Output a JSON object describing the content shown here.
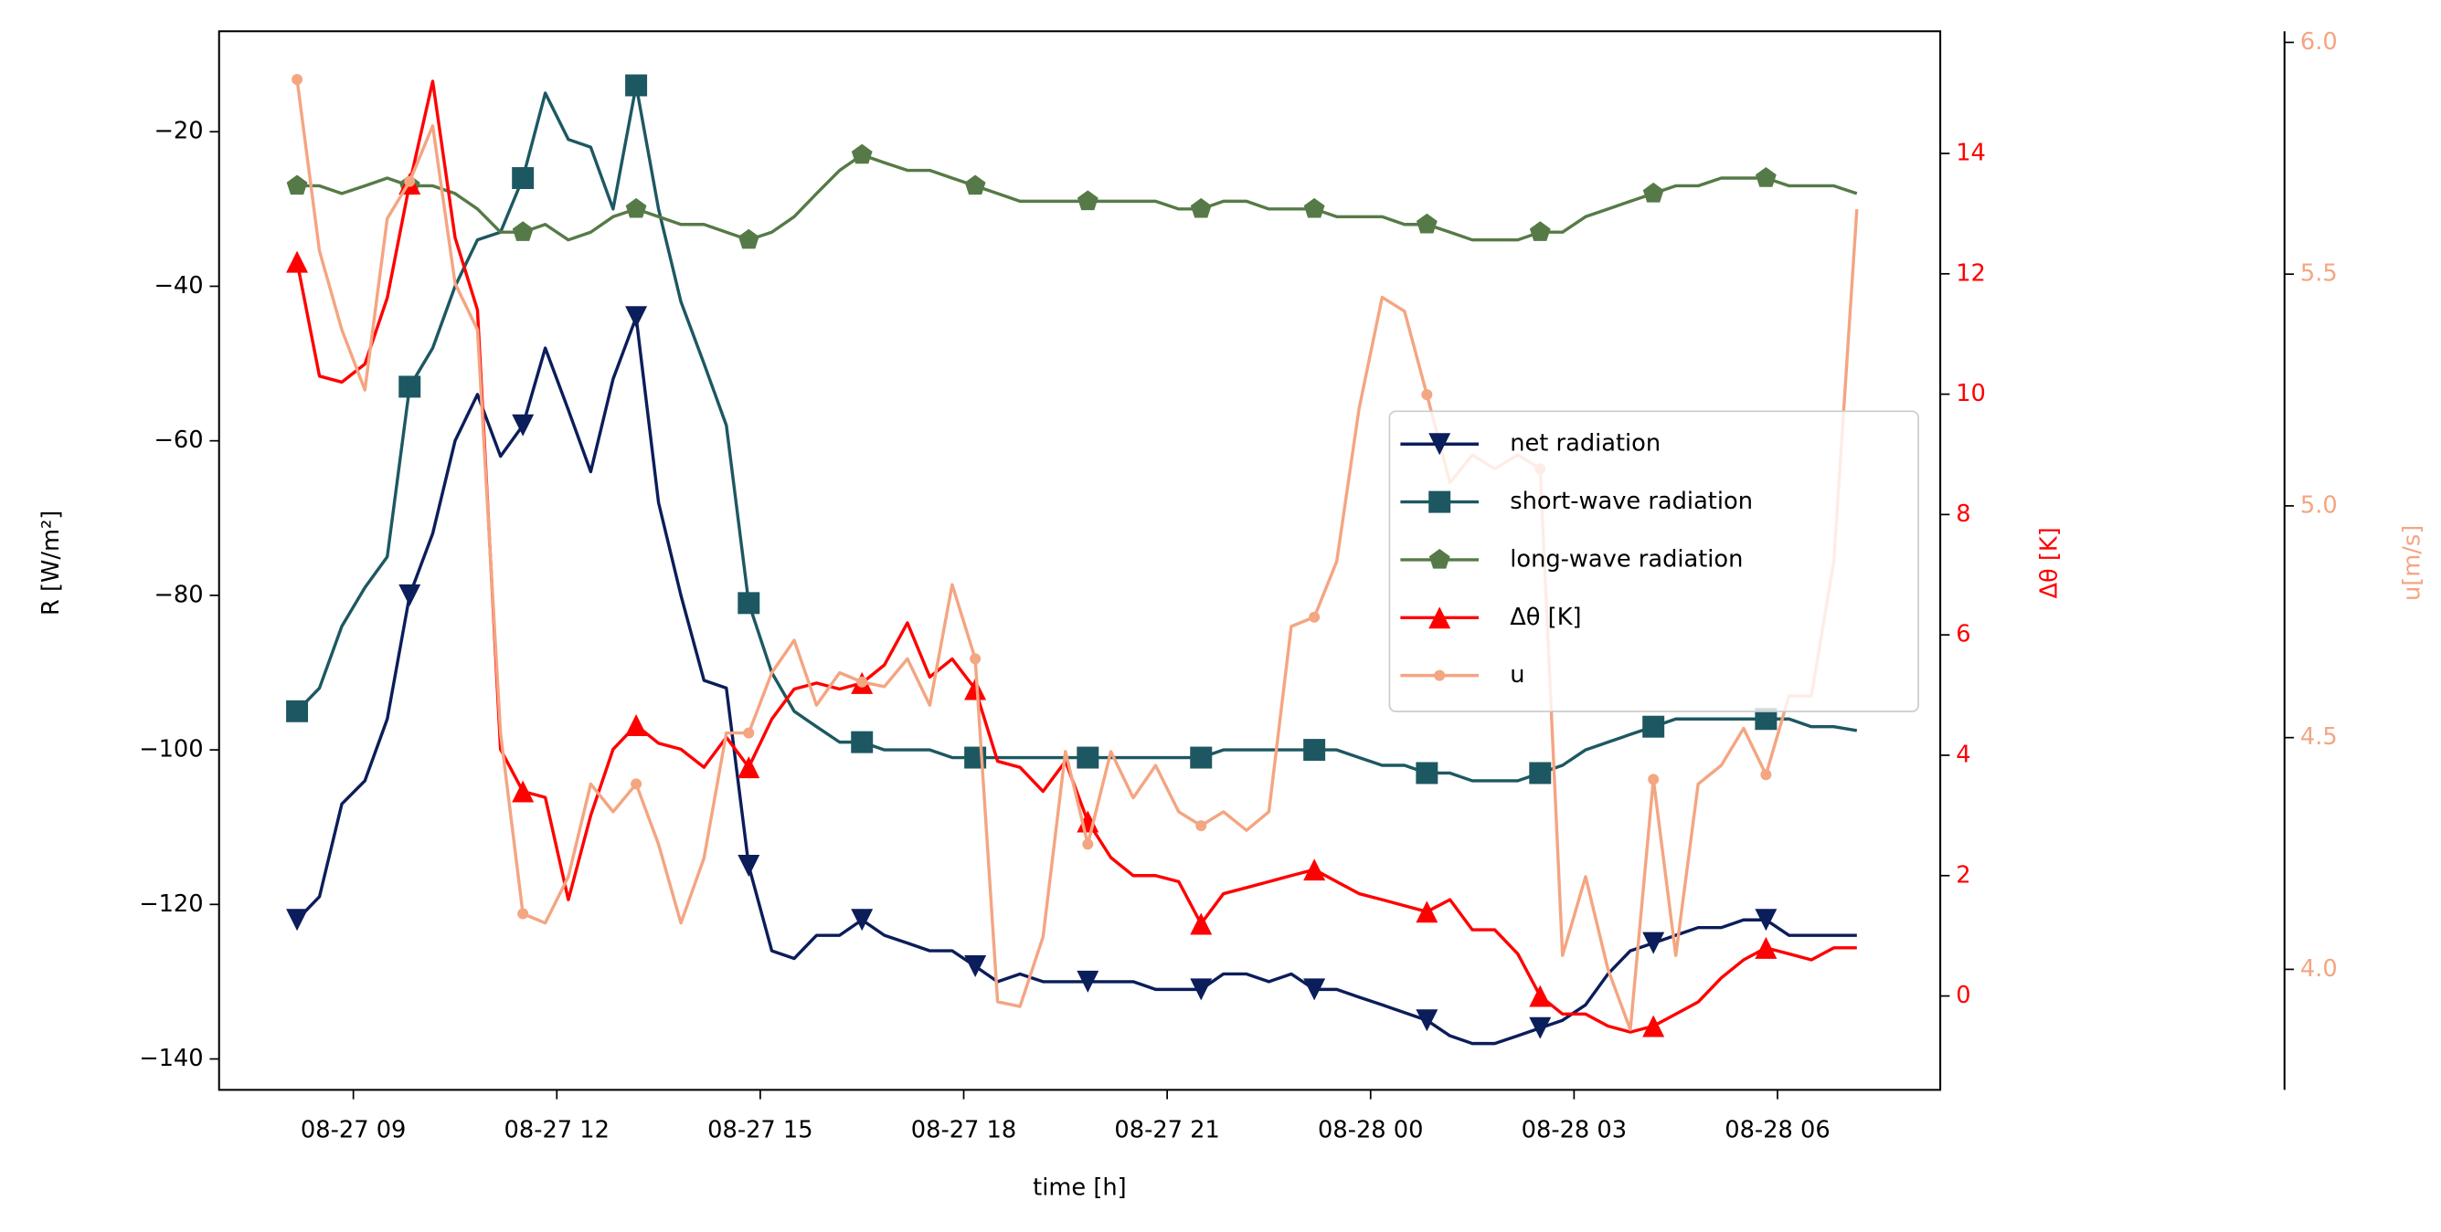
{
  "chart_data": {
    "type": "line",
    "xlabel": "time [h]",
    "ylabel": "R [W/m²]",
    "y2label": "Δθ [K]",
    "y3label": "u[m/s]",
    "x": [
      8.17,
      8.5,
      8.83,
      9.17,
      9.5,
      9.83,
      10.17,
      10.5,
      10.83,
      11.17,
      11.5,
      11.83,
      12.17,
      12.5,
      12.83,
      13.17,
      13.5,
      13.83,
      14.17,
      14.5,
      14.83,
      15.17,
      15.5,
      15.83,
      16.17,
      16.5,
      16.83,
      17.17,
      17.5,
      17.83,
      18.17,
      18.5,
      18.83,
      19.17,
      19.5,
      19.83,
      20.17,
      20.5,
      20.83,
      21.17,
      21.5,
      21.83,
      22.17,
      22.5,
      22.83,
      23.17,
      23.5,
      23.83,
      24.17,
      24.5,
      24.83,
      25.17,
      25.5,
      25.83,
      26.17,
      26.5,
      26.83,
      27.17,
      27.5,
      27.83,
      28.17,
      28.5,
      28.83,
      29.17,
      29.5,
      29.83,
      30.17,
      30.5,
      30.83,
      31.17
    ],
    "xlim": [
      7.02,
      32.4
    ],
    "xticks": [
      {
        "value": 9,
        "label": "08-27 09"
      },
      {
        "value": 12,
        "label": "08-27 12"
      },
      {
        "value": 15,
        "label": "08-27 15"
      },
      {
        "value": 18,
        "label": "08-27 18"
      },
      {
        "value": 21,
        "label": "08-27 21"
      },
      {
        "value": 24,
        "label": "08-28 00"
      },
      {
        "value": 27,
        "label": "08-28 03"
      },
      {
        "value": 30,
        "label": "08-28 06"
      }
    ],
    "ylim": [
      -144,
      -7
    ],
    "yticks": [
      {
        "value": -140,
        "label": "−140"
      },
      {
        "value": -120,
        "label": "−120"
      },
      {
        "value": -100,
        "label": "−100"
      },
      {
        "value": -80,
        "label": "−80"
      },
      {
        "value": -60,
        "label": "−60"
      },
      {
        "value": -40,
        "label": "−40"
      },
      {
        "value": -20,
        "label": "−20"
      }
    ],
    "y2lim": [
      -1.56,
      16.03
    ],
    "y2ticks": [
      0,
      2,
      4,
      6,
      8,
      10,
      12,
      14
    ],
    "y2color": "#ff0000",
    "y3lim": [
      3.74,
      6.024
    ],
    "y3ticks": [
      {
        "value": 4,
        "label": "4.0"
      },
      4.5,
      {
        "value": 5,
        "label": "5.0"
      },
      5.5,
      {
        "value": 6,
        "label": "6.0"
      }
    ],
    "y3color": "#f4a582",
    "markevery": 5,
    "series": [
      {
        "name": "net radiation",
        "color": "#0b1d5a",
        "marker": "v",
        "values": [
          -122,
          -119,
          -107,
          -104,
          -96,
          -80,
          -72,
          -60,
          -54,
          -62,
          -58,
          -48,
          -56,
          -64,
          -52,
          -44,
          -68,
          -80,
          -91,
          -92,
          -115,
          -126,
          -127,
          -124,
          -124,
          -122,
          -124,
          -125,
          -126,
          -126,
          -128,
          -130,
          -129,
          -130,
          -130,
          -130,
          -130,
          -130,
          -131,
          -131,
          -131,
          -129,
          -129,
          -130,
          -129,
          -131,
          -131,
          -132,
          -133,
          -134,
          -135,
          -137,
          -138,
          -138,
          -137,
          -136,
          -135,
          -133,
          -129,
          -126,
          -125,
          -124,
          -123,
          -123,
          -122,
          -122,
          -124,
          -124,
          -124,
          -124
        ]
      },
      {
        "name": "short-wave radiation",
        "color": "#1d5862",
        "marker": "s",
        "values": [
          -95,
          -92,
          -84,
          -79,
          -75,
          -53,
          -48,
          -40,
          -34,
          -33,
          -26,
          -15,
          -21,
          -22,
          -30,
          -14,
          -30,
          -42,
          -50,
          -58,
          -81,
          -90,
          -95,
          -97,
          -99,
          -99,
          -100,
          -100,
          -100,
          -101,
          -101,
          -101,
          -101,
          -101,
          -101,
          -101,
          -101,
          -101,
          -101,
          -101,
          -101,
          -100,
          -100,
          -100,
          -100,
          -100,
          -100,
          -101,
          -102,
          -102,
          -103,
          -103,
          -104,
          -104,
          -104,
          -103,
          -102,
          -100,
          -99,
          -98,
          -97,
          -96,
          -96,
          -96,
          -96,
          -96,
          -96,
          -97,
          -97,
          -97.5
        ]
      },
      {
        "name": "long-wave radiation",
        "color": "#567a47",
        "marker": "p",
        "values": [
          -27,
          -27,
          -28,
          -27,
          -26,
          -27,
          -27,
          -28,
          -30,
          -33,
          -33,
          -32,
          -34,
          -33,
          -31,
          -30,
          -31,
          -32,
          -32,
          -33,
          -34,
          -33,
          -31,
          -28,
          -25,
          -23,
          -24,
          -25,
          -25,
          -26,
          -27,
          -28,
          -29,
          -29,
          -29,
          -29,
          -29,
          -29,
          -29,
          -30,
          -30,
          -29,
          -29,
          -30,
          -30,
          -30,
          -31,
          -31,
          -31,
          -32,
          -32,
          -33,
          -34,
          -34,
          -34,
          -33,
          -33,
          -31,
          -30,
          -29,
          -28,
          -27,
          -27,
          -26,
          -26,
          -26,
          -27,
          -27,
          -27,
          -28
        ]
      },
      {
        "name": "Δθ [K]",
        "color": "#ff0000",
        "marker": "^",
        "axis": "y2",
        "values": [
          12.2,
          10.3,
          10.2,
          10.5,
          11.6,
          13.5,
          15.2,
          12.6,
          11.4,
          4.1,
          3.4,
          3.3,
          1.6,
          3.0,
          4.1,
          4.5,
          4.2,
          4.1,
          3.8,
          4.3,
          3.8,
          4.6,
          5.1,
          5.2,
          5.1,
          5.2,
          5.5,
          6.2,
          5.3,
          5.6,
          5.1,
          3.9,
          3.8,
          3.4,
          3.9,
          2.9,
          2.3,
          2.0,
          2.0,
          1.9,
          1.2,
          1.7,
          1.8,
          1.9,
          2.0,
          2.1,
          1.9,
          1.7,
          1.6,
          1.5,
          1.4,
          1.6,
          1.1,
          1.1,
          0.7,
          0.0,
          -0.3,
          -0.3,
          -0.5,
          -0.6,
          -0.5,
          -0.3,
          -0.1,
          0.3,
          0.6,
          0.8,
          0.7,
          0.6,
          0.8,
          0.8
        ]
      },
      {
        "name": "u",
        "color": "#f4a582",
        "marker": "o",
        "axis": "y3",
        "values": [
          5.92,
          5.55,
          5.38,
          5.25,
          5.62,
          5.7,
          5.82,
          5.48,
          5.38,
          4.51,
          4.12,
          4.1,
          4.2,
          4.4,
          4.34,
          4.4,
          4.27,
          4.1,
          4.24,
          4.51,
          4.51,
          4.64,
          4.71,
          4.57,
          4.64,
          4.62,
          4.61,
          4.67,
          4.57,
          4.83,
          4.67,
          3.93,
          3.92,
          4.07,
          4.47,
          4.27,
          4.47,
          4.37,
          4.44,
          4.34,
          4.31,
          4.34,
          4.3,
          4.34,
          4.74,
          4.76,
          4.88,
          5.21,
          5.45,
          5.42,
          5.24,
          5.05,
          5.11,
          5.08,
          5.11,
          5.08,
          4.03,
          4.2,
          4.0,
          3.87,
          4.41,
          4.03,
          4.4,
          4.44,
          4.52,
          4.42,
          4.59,
          4.59,
          4.88,
          5.64
        ]
      }
    ]
  }
}
